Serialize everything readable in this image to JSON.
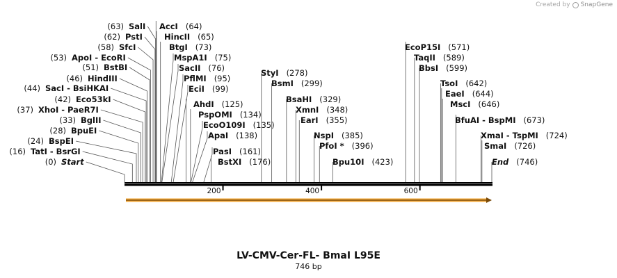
{
  "brand": {
    "prefix": "Created by",
    "name": "SnapGene",
    "icon": "snapgene-logo-icon"
  },
  "map": {
    "title": "LV-CMV-Cer-FL- BmaI L95E",
    "length_label": "746 bp",
    "length_bp": 746,
    "ticks": [
      {
        "value": 200,
        "label": "200"
      },
      {
        "value": 400,
        "label": "400"
      },
      {
        "value": 600,
        "label": "600"
      }
    ],
    "feature": {
      "name": "feature-arrow",
      "color": "#f2a93b",
      "start": 1,
      "end": 746,
      "direction": "forward"
    },
    "colors": {
      "backbone": "#000000",
      "leader": "#555555",
      "feature": "#f2a93b"
    }
  },
  "sites": [
    {
      "id": "start",
      "pos": 0,
      "pos_label": "(0)",
      "name": "Start",
      "marker": true
    },
    {
      "id": "tati",
      "pos": 16,
      "pos_label": "(16)",
      "name": "TatI  -  BsrGI"
    },
    {
      "id": "bspei",
      "pos": 24,
      "pos_label": "(24)",
      "name": "BspEI"
    },
    {
      "id": "bpuei",
      "pos": 28,
      "pos_label": "(28)",
      "name": "BpuEI"
    },
    {
      "id": "bglii",
      "pos": 33,
      "pos_label": "(33)",
      "name": "BglII"
    },
    {
      "id": "xhoi",
      "pos": 37,
      "pos_label": "(37)",
      "name": "XhoI  -  PaeR7I"
    },
    {
      "id": "eco53ki",
      "pos": 42,
      "pos_label": "(42)",
      "name": "Eco53kI"
    },
    {
      "id": "saci",
      "pos": 44,
      "pos_label": "(44)",
      "name": "SacI  -  BsiHKAI"
    },
    {
      "id": "hindiii",
      "pos": 46,
      "pos_label": "(46)",
      "name": "HindIII"
    },
    {
      "id": "bstbi",
      "pos": 51,
      "pos_label": "(51)",
      "name": "BstBI"
    },
    {
      "id": "apoi",
      "pos": 53,
      "pos_label": "(53)",
      "name": "ApoI  -  EcoRI"
    },
    {
      "id": "sfci",
      "pos": 58,
      "pos_label": "(58)",
      "name": "SfcI"
    },
    {
      "id": "psti",
      "pos": 62,
      "pos_label": "(62)",
      "name": "PstI"
    },
    {
      "id": "sali",
      "pos": 63,
      "pos_label": "(63)",
      "name": "SalI"
    },
    {
      "id": "acci",
      "pos": 64,
      "pos_label": "(64)",
      "name": "AccI"
    },
    {
      "id": "hincii",
      "pos": 65,
      "pos_label": "(65)",
      "name": "HincII"
    },
    {
      "id": "btgi",
      "pos": 73,
      "pos_label": "(73)",
      "name": "BtgI"
    },
    {
      "id": "mspa1i",
      "pos": 75,
      "pos_label": "(75)",
      "name": "MspA1I"
    },
    {
      "id": "sacii",
      "pos": 76,
      "pos_label": "(76)",
      "name": "SacII"
    },
    {
      "id": "pflmi",
      "pos": 95,
      "pos_label": "(95)",
      "name": "PflMI"
    },
    {
      "id": "ecii",
      "pos": 99,
      "pos_label": "(99)",
      "name": "EciI"
    },
    {
      "id": "ahdi",
      "pos": 125,
      "pos_label": "(125)",
      "name": "AhdI"
    },
    {
      "id": "pspomi",
      "pos": 134,
      "pos_label": "(134)",
      "name": "PspOMI"
    },
    {
      "id": "ecoo109i",
      "pos": 135,
      "pos_label": "(135)",
      "name": "EcoO109I"
    },
    {
      "id": "apai",
      "pos": 138,
      "pos_label": "(138)",
      "name": "ApaI"
    },
    {
      "id": "pasi",
      "pos": 161,
      "pos_label": "(161)",
      "name": "PasI"
    },
    {
      "id": "bstxi",
      "pos": 176,
      "pos_label": "(176)",
      "name": "BstXI"
    },
    {
      "id": "styi",
      "pos": 278,
      "pos_label": "(278)",
      "name": "StyI"
    },
    {
      "id": "bsmi",
      "pos": 299,
      "pos_label": "(299)",
      "name": "BsmI"
    },
    {
      "id": "bsahi",
      "pos": 329,
      "pos_label": "(329)",
      "name": "BsaHI"
    },
    {
      "id": "xmni",
      "pos": 348,
      "pos_label": "(348)",
      "name": "XmnI"
    },
    {
      "id": "eari",
      "pos": 355,
      "pos_label": "(355)",
      "name": "EarI"
    },
    {
      "id": "nspi",
      "pos": 385,
      "pos_label": "(385)",
      "name": "NspI"
    },
    {
      "id": "pfoi",
      "pos": 396,
      "pos_label": "(396)",
      "name": "PfoI *"
    },
    {
      "id": "bpu10i",
      "pos": 423,
      "pos_label": "(423)",
      "name": "Bpu10I"
    },
    {
      "id": "ecop15i",
      "pos": 571,
      "pos_label": "(571)",
      "name": "EcoP15I"
    },
    {
      "id": "taqii",
      "pos": 589,
      "pos_label": "(589)",
      "name": "TaqII"
    },
    {
      "id": "bbsi",
      "pos": 599,
      "pos_label": "(599)",
      "name": "BbsI"
    },
    {
      "id": "tsoi",
      "pos": 642,
      "pos_label": "(642)",
      "name": "TsoI"
    },
    {
      "id": "eaei",
      "pos": 644,
      "pos_label": "(644)",
      "name": "EaeI"
    },
    {
      "id": "msci",
      "pos": 646,
      "pos_label": "(646)",
      "name": "MscI"
    },
    {
      "id": "bfuai",
      "pos": 673,
      "pos_label": "(673)",
      "name": "BfuAI  -  BspMI"
    },
    {
      "id": "xmai",
      "pos": 724,
      "pos_label": "(724)",
      "name": "XmaI  -  TspMI"
    },
    {
      "id": "smai",
      "pos": 726,
      "pos_label": "(726)",
      "name": "SmaI"
    },
    {
      "id": "end",
      "pos": 746,
      "pos_label": "(746)",
      "name": "End",
      "marker": true
    }
  ]
}
